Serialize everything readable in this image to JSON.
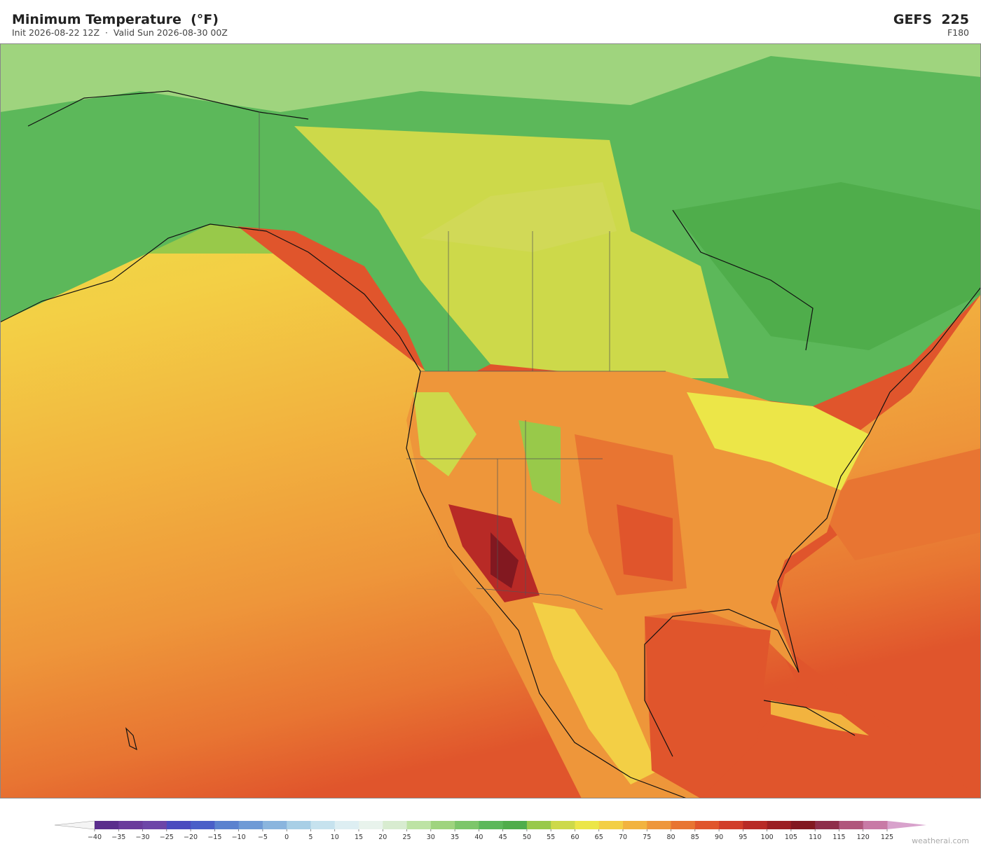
{
  "header": {
    "title": "Minimum Temperature  (°F)",
    "subtitle": "Init 2026-08-22 12Z  ·  Valid Sun 2026-08-30 00Z",
    "model": "GEFS  225",
    "forecast_hour": "F180"
  },
  "colorbar": {
    "ticks": [
      {
        "value": -40,
        "label": "−40"
      },
      {
        "value": -35,
        "label": "−35"
      },
      {
        "value": -30,
        "label": "−30"
      },
      {
        "value": -25,
        "label": "−25"
      },
      {
        "value": -20,
        "label": "−20"
      },
      {
        "value": -15,
        "label": "−15"
      },
      {
        "value": -10,
        "label": "−10"
      },
      {
        "value": -5,
        "label": "−5"
      },
      0,
      5,
      10,
      15,
      20,
      25,
      30,
      35,
      40,
      45,
      50,
      55,
      60,
      65,
      70,
      75,
      80,
      85,
      90,
      95,
      100,
      105,
      110,
      115,
      120,
      125
    ],
    "colors": [
      "#5a2d8c",
      "#6a3a9c",
      "#6d45a8",
      "#4b4bbf",
      "#4a5fc8",
      "#5b82cf",
      "#6e9ad6",
      "#8ab5de",
      "#a8cfe6",
      "#c6e2ee",
      "#ddeef2",
      "#e8f3ec",
      "#d8ecd0",
      "#bde3a4",
      "#9fd47e",
      "#7dc66a",
      "#5cb85a",
      "#4fad4b",
      "#98c94a",
      "#cdd94a",
      "#ece648",
      "#f3cf45",
      "#f2b33f",
      "#ee963a",
      "#e87532",
      "#e0552c",
      "#d13d2a",
      "#b82a26",
      "#9b1e22",
      "#821820",
      "#8e2d4a",
      "#b0567c",
      "#c87aa6"
    ],
    "under_color": "#f4f4f4",
    "over_color": "#d8a2cc"
  },
  "footer": {
    "credit": "weatherai.com"
  }
}
